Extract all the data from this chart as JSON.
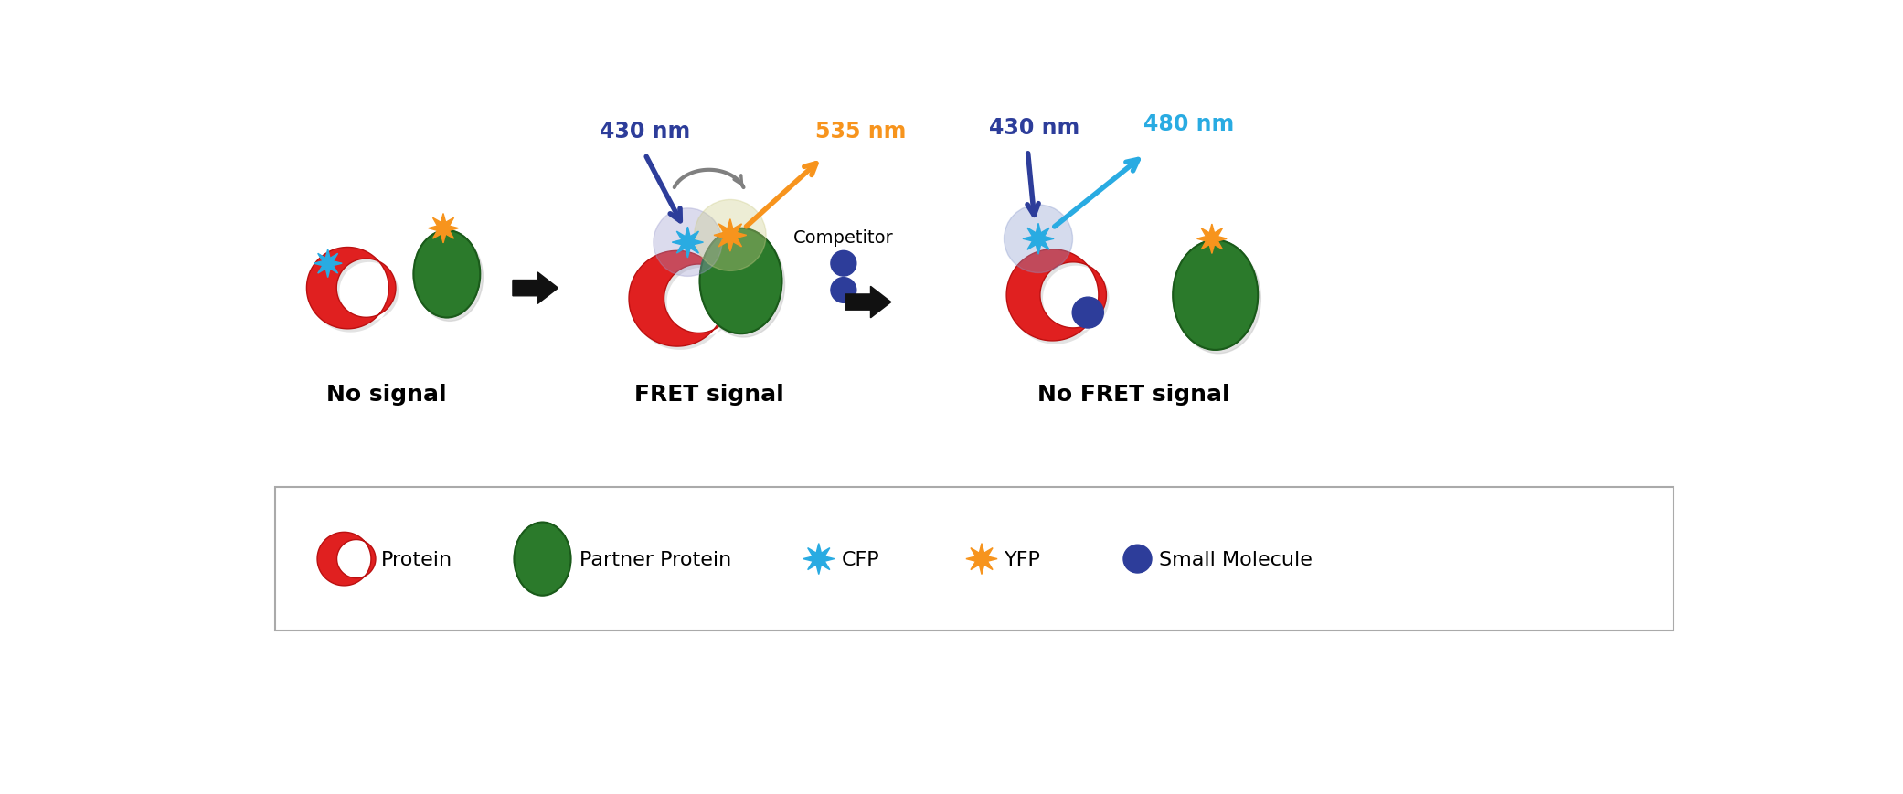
{
  "bg_color": "#ffffff",
  "figsize": [
    20.82,
    8.7
  ],
  "dpi": 100,
  "colors": {
    "red": "#E02020",
    "red_dark": "#BB1010",
    "green": "#2B7A2B",
    "green_dark": "#1A5A1A",
    "blue_star": "#29ABE2",
    "yellow_star": "#F7941D",
    "navy": "#2D3D9A",
    "cyan_arrow": "#29ABE2",
    "yellow_arrow": "#F7941D",
    "gray_arrow": "#808080",
    "black": "#111111",
    "shadow": "#BBBBBB"
  },
  "panel1_label": "No signal",
  "panel2_label": "FRET signal",
  "panel3_label": "No FRET signal",
  "label_430": "430 nm",
  "label_535": "535 nm",
  "label_480": "480 nm",
  "competitor_label": "Competitor",
  "legend_items": [
    "Protein",
    "Partner Protein",
    "CFP",
    "YFP",
    "Small Molecule"
  ]
}
